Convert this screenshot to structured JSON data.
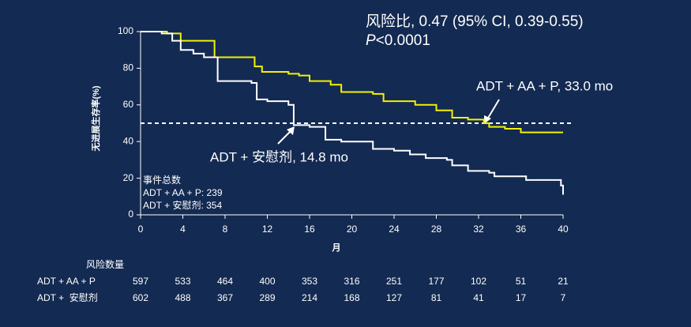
{
  "chart_data": {
    "type": "step",
    "title": "风险比, 0.47 (95% CI, 0.39-0.55)",
    "p_value": {
      "prefix": "P",
      "text": "<0.0001"
    },
    "y_label": "无进展生存率(%)",
    "x_label": "月",
    "xlim": [
      0,
      40
    ],
    "xticks": [
      0,
      4,
      8,
      12,
      16,
      20,
      24,
      28,
      32,
      36,
      40
    ],
    "ylim": [
      0,
      100
    ],
    "yticks": [
      0,
      20,
      40,
      60,
      80,
      100
    ],
    "reference_line": 50,
    "series": [
      {
        "name": "ADT + AA + P",
        "color": "#f2f200",
        "x": [
          0,
          2.5,
          3.8,
          7,
          10.8,
          11.5,
          14,
          15,
          16,
          18,
          19,
          22,
          23,
          26,
          28,
          29.5,
          31,
          32.5,
          33,
          34.5,
          36,
          40
        ],
        "values": [
          100,
          99,
          95,
          86,
          81,
          78,
          77,
          76,
          73,
          71,
          67,
          66,
          62,
          60,
          57,
          53,
          52,
          50,
          48,
          47,
          45,
          45
        ]
      },
      {
        "name": "ADT + 安慰剂",
        "color": "#ffffff",
        "x": [
          0,
          2,
          3,
          3.8,
          5,
          6,
          7.3,
          10.5,
          11,
          12,
          14,
          14.5,
          16,
          17.5,
          19,
          22,
          24,
          25.5,
          27,
          29,
          29.5,
          31,
          33,
          33.5,
          36.5,
          39.8,
          40
        ],
        "values": [
          100,
          99,
          95,
          90,
          88,
          86,
          73,
          72,
          63,
          62,
          60,
          49,
          48,
          41,
          40,
          36,
          35,
          33,
          31,
          30,
          27,
          24,
          23,
          21,
          19,
          16,
          11
        ]
      }
    ],
    "annotations": [
      "ADT + AA + P, 33.0 mo",
      "ADT + 安慰剂, 14.8 mo"
    ],
    "events_box": [
      "事件总数",
      "ADT + AA + P: 239",
      "ADT + 安慰剂: 354"
    ],
    "risk_table": {
      "title": "风险数量",
      "rows": [
        {
          "label": "ADT + AA + P",
          "values": [
            597,
            533,
            464,
            400,
            353,
            316,
            251,
            177,
            102,
            51,
            21
          ]
        },
        {
          "label": "ADT +  安慰剂",
          "values": [
            602,
            488,
            367,
            289,
            214,
            168,
            127,
            81,
            41,
            17,
            7
          ]
        }
      ]
    }
  }
}
